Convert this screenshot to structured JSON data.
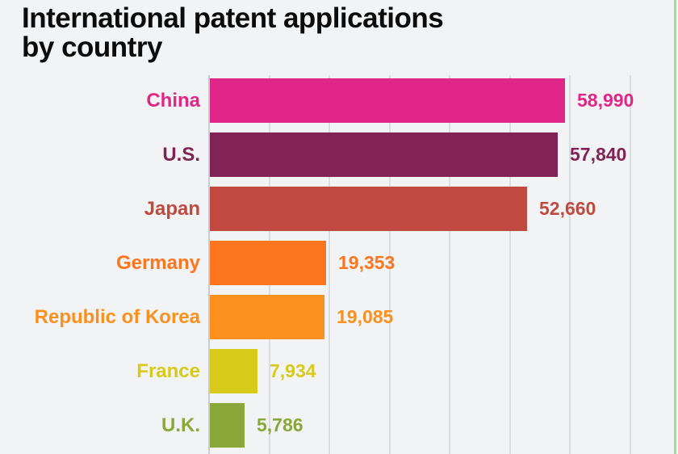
{
  "page": {
    "background": "#f2f3f4",
    "edge_line_color": "#8ceb84"
  },
  "title": {
    "lines": [
      "International patent applications",
      "by country"
    ],
    "color": "#0c0c0c"
  },
  "chart_data": {
    "type": "bar",
    "orientation": "horizontal",
    "title": "International patent applications by country",
    "categories": [
      "China",
      "U.S.",
      "Japan",
      "Germany",
      "Republic of Korea",
      "France",
      "U.K."
    ],
    "values": [
      58990,
      57840,
      52660,
      19353,
      19085,
      7934,
      5786
    ],
    "value_labels": [
      "58,990",
      "57,840",
      "52,660",
      "19,353",
      "19,085",
      "7,934",
      "5,786"
    ],
    "bar_colors": [
      "#e02788",
      "#812355",
      "#c04a40",
      "#fb761e",
      "#fb901e",
      "#d8ca1b",
      "#89a839"
    ],
    "xlabel": "",
    "ylabel": "",
    "xlim": [
      0,
      77900
    ],
    "grid_interval": 10000,
    "grid": true,
    "gridline_color": "#dbdde2",
    "axis_line_color": "#c7ccd5",
    "legend": "none"
  }
}
